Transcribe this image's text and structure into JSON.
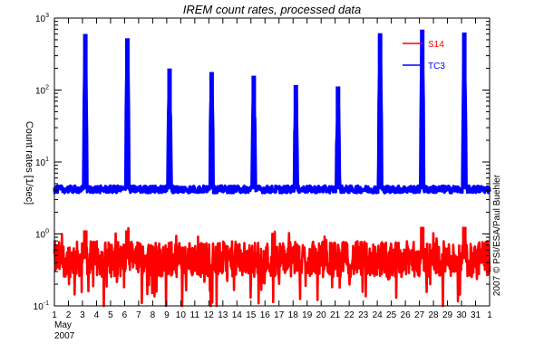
{
  "chart_data": {
    "type": "line",
    "title": "IREM count rates, processed data",
    "ylabel": "Count rates [1/sec]",
    "xlabel_month": "May",
    "xlabel_year": "2007",
    "credit": "2007 © PSI/ESA/Paul Buehler",
    "yscale": "log",
    "ylim_exp": [
      -1,
      3
    ],
    "ytick_exponents": [
      3,
      2,
      1,
      0,
      -1
    ],
    "xlim": [
      1,
      32
    ],
    "xticks": [
      "1",
      "2",
      "3",
      "4",
      "5",
      "6",
      "7",
      "8",
      "9",
      "10",
      "11",
      "12",
      "13",
      "14",
      "15",
      "16",
      "17",
      "18",
      "19",
      "20",
      "21",
      "22",
      "23",
      "24",
      "25",
      "26",
      "27",
      "28",
      "29",
      "30",
      "31",
      "1"
    ],
    "legend_position": "top-right",
    "grid": false,
    "series": [
      {
        "name": "S14",
        "color": "#ff0000",
        "baseline_log10": -0.35,
        "baseline_spread_log10": 0.25,
        "spikes": [
          {
            "x": 3.2,
            "peak_log10": 0.05
          },
          {
            "x": 6.2,
            "peak_log10": 0.05
          },
          {
            "x": 27.2,
            "peak_log10": 0.1
          },
          {
            "x": 30.2,
            "peak_log10": 0.1
          }
        ]
      },
      {
        "name": "TC3",
        "color": "#0000ff",
        "baseline_log10": 0.62,
        "baseline_spread_log10": 0.05,
        "spikes": [
          {
            "x": 3.2,
            "peak_log10": 2.78
          },
          {
            "x": 6.2,
            "peak_log10": 2.72
          },
          {
            "x": 9.2,
            "peak_log10": 2.3
          },
          {
            "x": 12.2,
            "peak_log10": 2.25
          },
          {
            "x": 15.2,
            "peak_log10": 2.2
          },
          {
            "x": 18.2,
            "peak_log10": 2.07
          },
          {
            "x": 21.2,
            "peak_log10": 2.05
          },
          {
            "x": 24.2,
            "peak_log10": 2.79
          },
          {
            "x": 27.2,
            "peak_log10": 2.84
          },
          {
            "x": 30.2,
            "peak_log10": 2.8
          }
        ]
      }
    ]
  }
}
